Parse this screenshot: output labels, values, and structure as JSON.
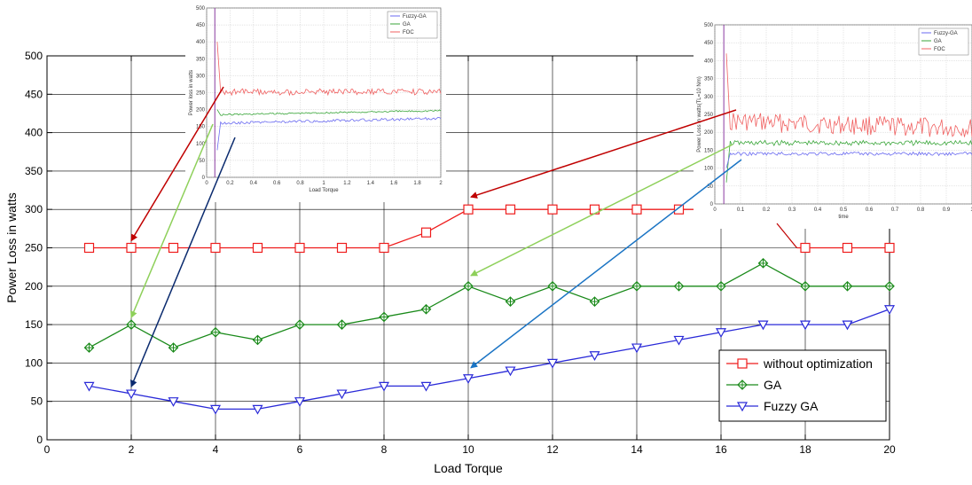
{
  "chart_data": [
    {
      "id": "main",
      "type": "line",
      "xlabel": "Load Torque",
      "ylabel": "Power Loss in watts",
      "xlim": [
        0,
        20
      ],
      "ylim": [
        0,
        500
      ],
      "xticks": [
        0,
        2,
        4,
        6,
        8,
        10,
        12,
        14,
        16,
        18,
        20
      ],
      "yticks": [
        0,
        50,
        100,
        150,
        200,
        250,
        300,
        350,
        400,
        450,
        500
      ],
      "grid": true,
      "legend_position": "bottom-right",
      "x": [
        1,
        2,
        3,
        4,
        5,
        6,
        7,
        8,
        9,
        10,
        11,
        12,
        13,
        14,
        15,
        16,
        17,
        18,
        19,
        20
      ],
      "series": [
        {
          "name": "without optimization",
          "color": "#ee1c1c",
          "marker": "square",
          "values": [
            250,
            250,
            250,
            250,
            250,
            250,
            250,
            250,
            270,
            300,
            300,
            300,
            300,
            300,
            300,
            null,
            null,
            250,
            250,
            250
          ]
        },
        {
          "name": "GA",
          "color": "#1a8a1a",
          "marker": "diamond-cross",
          "values": [
            120,
            150,
            120,
            140,
            130,
            150,
            150,
            160,
            170,
            200,
            180,
            200,
            180,
            200,
            200,
            200,
            230,
            200,
            200,
            200
          ]
        },
        {
          "name": "Fuzzy GA",
          "color": "#2a2ad8",
          "marker": "triangle-down",
          "values": [
            70,
            60,
            50,
            40,
            40,
            50,
            60,
            70,
            70,
            80,
            90,
            100,
            110,
            120,
            130,
            140,
            150,
            150,
            150,
            170
          ]
        }
      ]
    },
    {
      "id": "inset-left",
      "type": "line",
      "xlabel": "Load Torque",
      "ylabel": "Power loss in watts",
      "xticks": [
        "0",
        "0.2",
        "0.4",
        "0.6",
        "0.8",
        "1",
        "1.2",
        "1.4",
        "1.6",
        "1.8",
        "2"
      ],
      "yticks": [
        "0",
        "50",
        "100",
        "150",
        "200",
        "250",
        "300",
        "350",
        "400",
        "450",
        "500"
      ],
      "grid": true,
      "legend_position": "top-right",
      "series": [
        {
          "name": "Fuzzy-GA",
          "color": "#6a6af0"
        },
        {
          "name": "GA",
          "color": "#3aa63a"
        },
        {
          "name": "FOC",
          "color": "#f06060"
        }
      ]
    },
    {
      "id": "inset-right",
      "type": "line",
      "xlabel": "time",
      "ylabel": "Power Loss in watts(TL=10 Nm)",
      "xticks": [
        "0",
        "0.1",
        "0.2",
        "0.3",
        "0.4",
        "0.5",
        "0.6",
        "0.7",
        "0.8",
        "0.9",
        "1"
      ],
      "yticks": [
        "0",
        "50",
        "100",
        "150",
        "200",
        "250",
        "300",
        "350",
        "400",
        "450",
        "500"
      ],
      "grid": true,
      "legend_position": "top-right",
      "series": [
        {
          "name": "Fuzzy-GA",
          "color": "#6a6af0"
        },
        {
          "name": "GA",
          "color": "#3aa63a"
        },
        {
          "name": "FOC",
          "color": "#f06060"
        }
      ]
    }
  ],
  "colors": {
    "arrow_red": "#c00000",
    "arrow_light_green": "#8ed05a",
    "arrow_dark_blue": "#0a2a6e",
    "arrow_blue": "#1a74c4"
  }
}
